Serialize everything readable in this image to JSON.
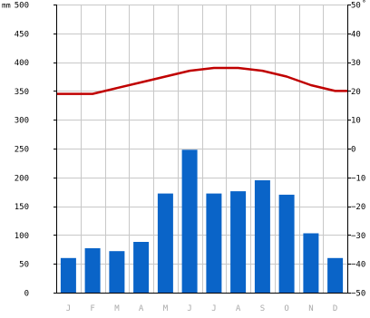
{
  "chart_data": {
    "type": "bar+line",
    "title": "",
    "categories": [
      "J",
      "F",
      "M",
      "A",
      "M",
      "J",
      "J",
      "A",
      "S",
      "O",
      "N",
      "D"
    ],
    "precip_unit": "mm",
    "temp_unit": "°",
    "left_axis": {
      "min": 0,
      "max": 500,
      "ticks": [
        "0",
        "50",
        "100",
        "150",
        "200",
        "250",
        "300",
        "350",
        "400",
        "450",
        "500"
      ]
    },
    "right_axis": {
      "min": -50,
      "max": 50,
      "ticks": [
        "−50",
        "−40",
        "−30",
        "−20",
        "−10",
        "0",
        "10",
        "20",
        "30",
        "40",
        "50"
      ]
    },
    "series": [
      {
        "kind": "bar",
        "axis": "left",
        "values": [
          60,
          77,
          72,
          88,
          172,
          248,
          172,
          176,
          195,
          170,
          103,
          60
        ]
      },
      {
        "kind": "line",
        "axis": "right",
        "values": [
          19,
          19,
          21,
          23,
          25,
          27,
          28,
          28,
          27,
          25,
          22,
          20
        ]
      }
    ],
    "grid": true,
    "colors": {
      "bar": "#0a64c8",
      "line": "#c00000",
      "grid": "#c8c8c8",
      "axis": "#000000",
      "month_label": "#aaaaaa"
    }
  }
}
